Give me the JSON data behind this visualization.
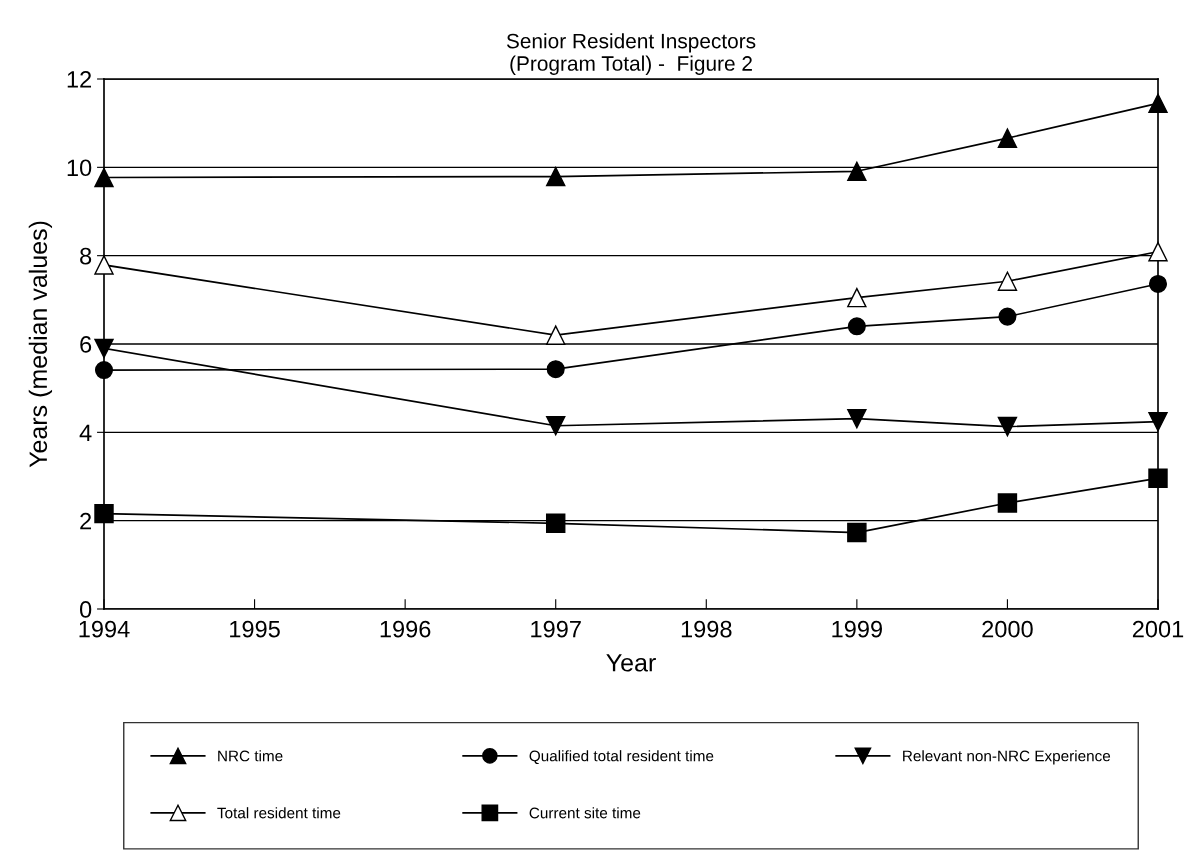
{
  "chart_data": {
    "type": "line",
    "title": "Senior Resident Inspectors\n(Program Total) -  Figure 2",
    "xlabel": "Year",
    "ylabel": "Years (median values)",
    "x": [
      1994,
      1997,
      1999,
      2000,
      2001
    ],
    "series": [
      {
        "name": "NRC time",
        "color": "#000000",
        "marker": "triangle",
        "values": [
          9.77,
          9.79,
          9.91,
          10.66,
          11.45
        ]
      },
      {
        "name": "Total resident time",
        "color": "#000000",
        "marker": "triangle-open",
        "values": [
          7.79,
          6.2,
          7.05,
          7.42,
          8.09
        ]
      },
      {
        "name": "Qualified total resident time",
        "color": "#000000",
        "marker": "circle",
        "values": [
          5.41,
          5.43,
          6.4,
          6.62,
          7.36
        ]
      },
      {
        "name": "Current site time",
        "color": "#000000",
        "marker": "square",
        "values": [
          2.16,
          1.94,
          1.73,
          2.4,
          2.96
        ]
      },
      {
        "name": "Relevant non-NRC Experience",
        "color": "#000000",
        "marker": "triangle-down",
        "values": [
          5.9,
          4.15,
          4.31,
          4.13,
          4.24
        ]
      }
    ],
    "xlim": [
      1994,
      2001
    ],
    "xticks": [
      1994,
      1995,
      1996,
      1997,
      1998,
      1999,
      2000,
      2001
    ],
    "ylim": [
      0,
      12
    ],
    "yticks": [
      0,
      2,
      4,
      6,
      8,
      10,
      12
    ],
    "grid": "y",
    "legend": "bottom",
    "line_style": "solid"
  }
}
